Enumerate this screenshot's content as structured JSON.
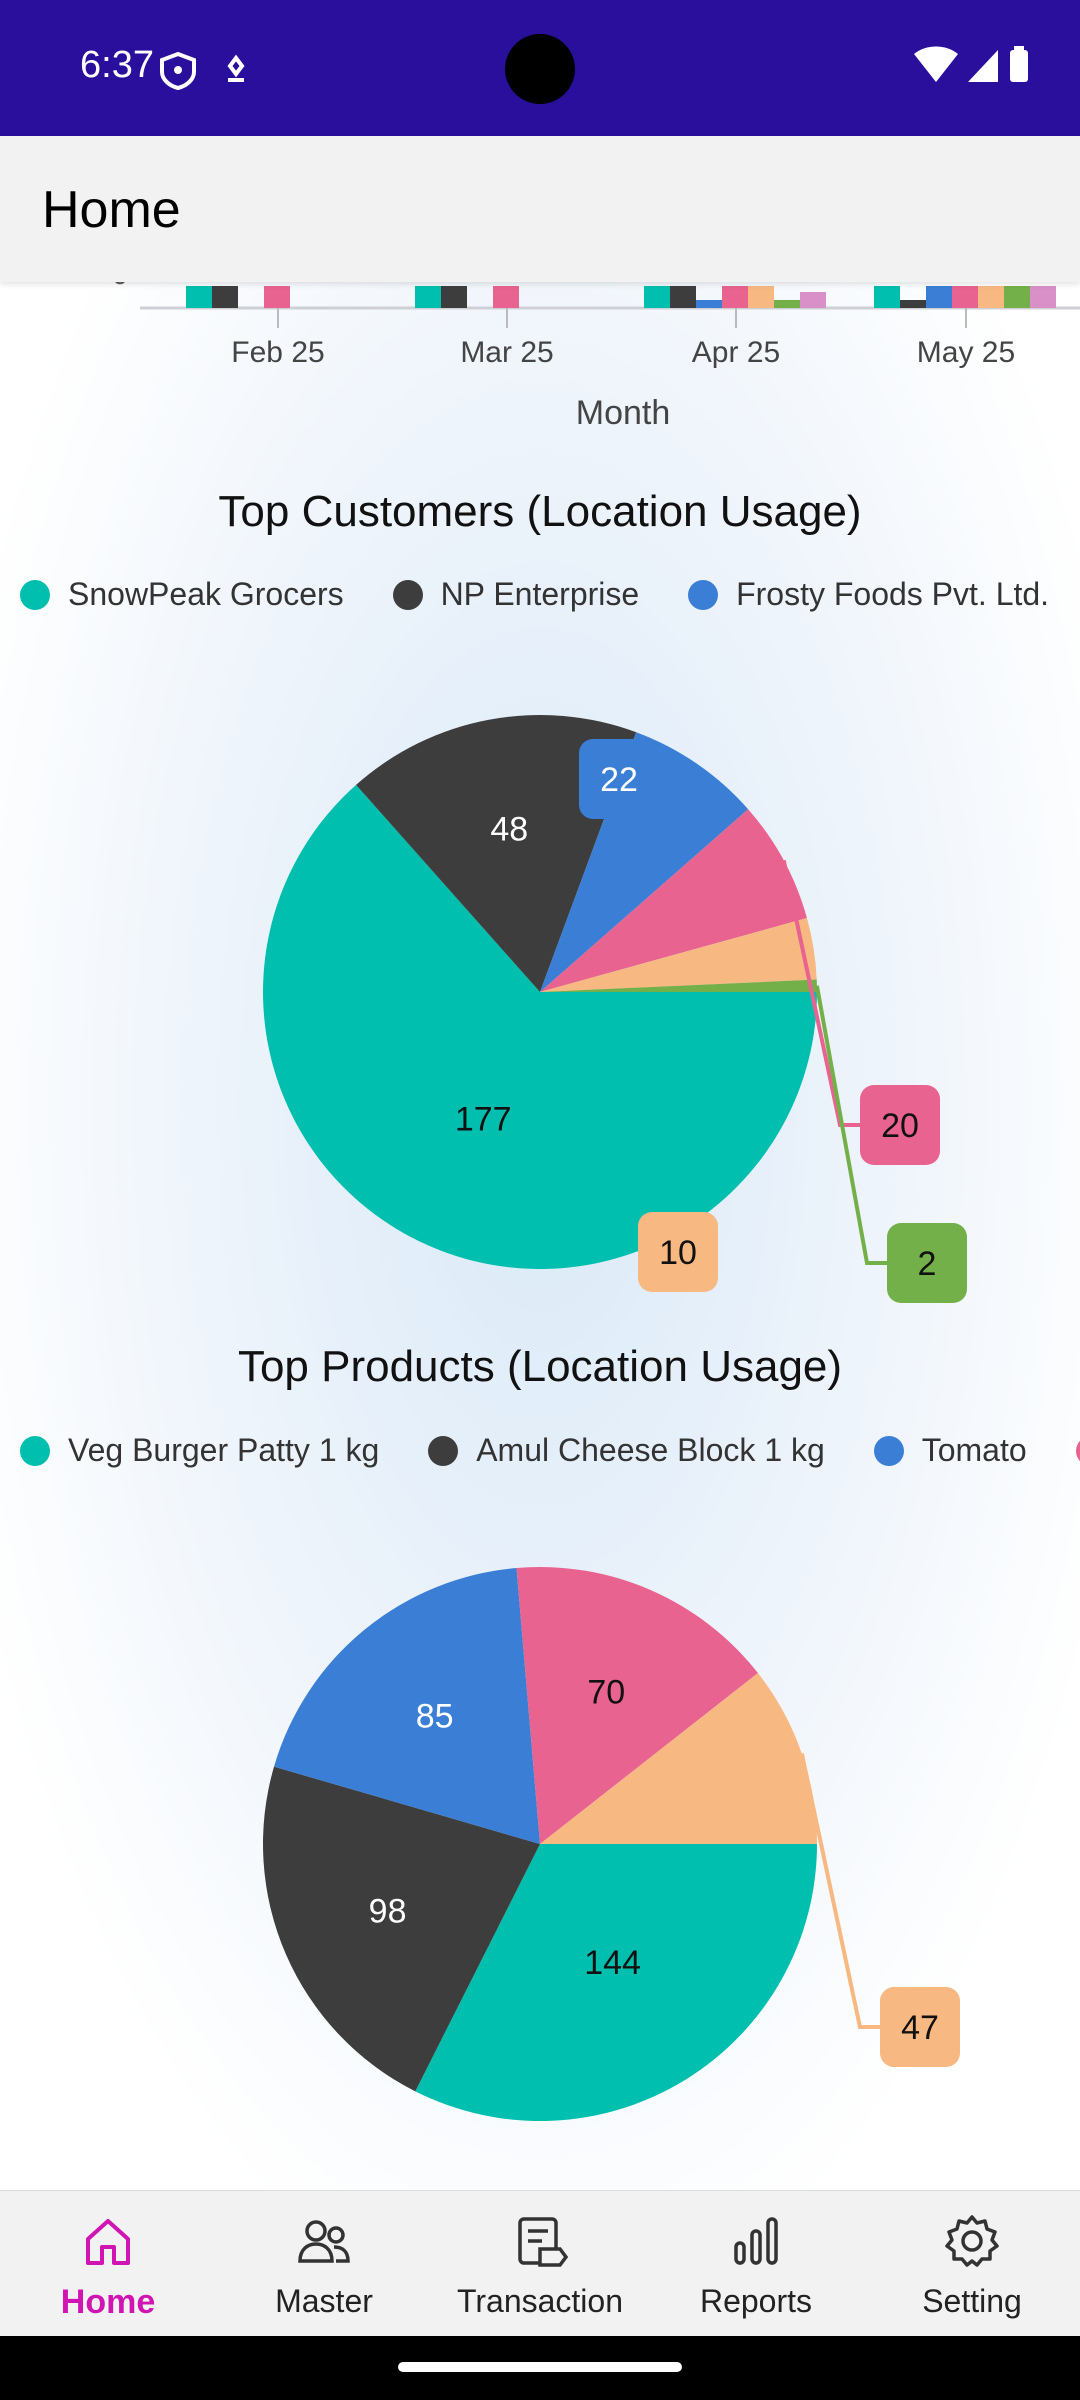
{
  "status_bar": {
    "time": "6:37"
  },
  "app_bar": {
    "title": "Home"
  },
  "bar_chart_partial": {
    "x_ticks": [
      "Feb 25",
      "Mar 25",
      "Apr 25",
      "May 25"
    ],
    "xlabel": "Month",
    "y_tick_partial": "0"
  },
  "customers_chart": {
    "title": "Top Customers (Location Usage)",
    "legend": [
      {
        "label": "SnowPeak Grocers",
        "color": "#00bfae"
      },
      {
        "label": "NP Enterprise",
        "color": "#3d3d3d"
      },
      {
        "label": "Frosty Foods Pvt. Ltd.",
        "color": "#3a7fd5"
      },
      {
        "label": "",
        "color": "#e8638f"
      }
    ],
    "labels": {
      "s0": "177",
      "s1": "48",
      "s2": "22",
      "s3": "20",
      "s4": "10",
      "s5": "2"
    }
  },
  "products_chart": {
    "title": "Top Products (Location Usage)",
    "legend": [
      {
        "label": "Veg Burger Patty 1 kg",
        "color": "#00bfae"
      },
      {
        "label": "Amul Cheese Block 1 kg",
        "color": "#3d3d3d"
      },
      {
        "label": "Tomato",
        "color": "#3a7fd5"
      },
      {
        "label": "",
        "color": "#e8638f"
      }
    ],
    "labels": {
      "s0": "144",
      "s1": "98",
      "s2": "85",
      "s3": "70",
      "s4": "47"
    }
  },
  "chart_data": [
    {
      "type": "pie",
      "title": "Top Customers (Location Usage)",
      "categories": [
        "SnowPeak Grocers",
        "NP Enterprise",
        "Frosty Foods Pvt. Ltd.",
        "",
        "",
        ""
      ],
      "values": [
        177,
        48,
        22,
        20,
        10,
        2
      ],
      "colors": [
        "#00bfae",
        "#3d3d3d",
        "#3a7fd5",
        "#e8638f",
        "#f7b882",
        "#74b04a"
      ],
      "legend": "top"
    },
    {
      "type": "pie",
      "title": "Top Products (Location Usage)",
      "categories": [
        "Veg Burger Patty 1 kg",
        "Amul Cheese Block 1 kg",
        "Tomato",
        "",
        ""
      ],
      "values": [
        144,
        98,
        85,
        70,
        47
      ],
      "colors": [
        "#00bfae",
        "#3d3d3d",
        "#3a7fd5",
        "#e8638f",
        "#f7b882"
      ],
      "legend": "top"
    }
  ],
  "bottom_nav": {
    "items": [
      {
        "label": "Home",
        "active": true
      },
      {
        "label": "Master",
        "active": false
      },
      {
        "label": "Transaction",
        "active": false
      },
      {
        "label": "Reports",
        "active": false
      },
      {
        "label": "Setting",
        "active": false
      }
    ]
  }
}
